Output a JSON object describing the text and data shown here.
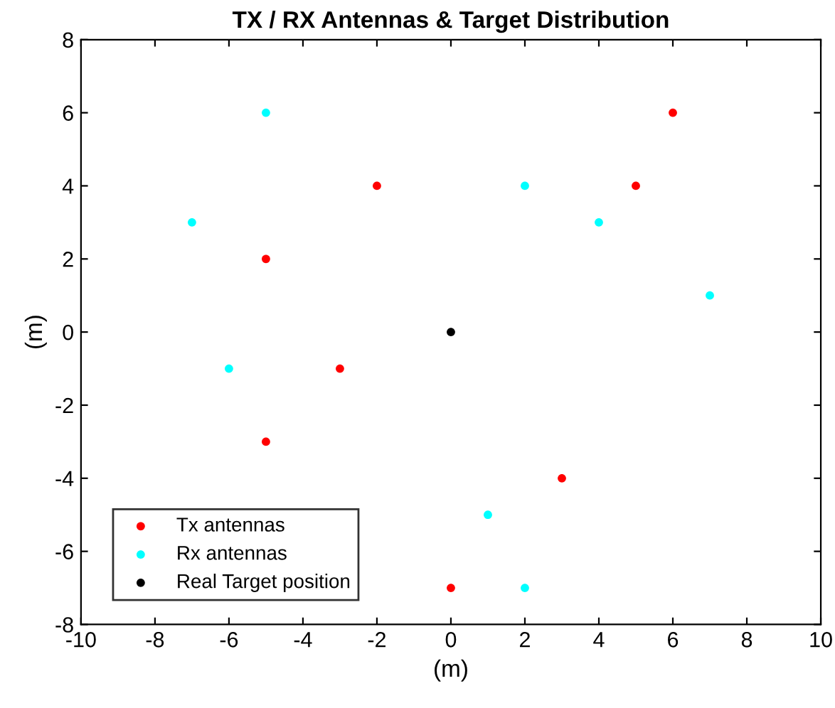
{
  "chart_data": {
    "type": "scatter",
    "title": "TX / RX Antennas & Target Distribution",
    "xlabel": "(m)",
    "ylabel": "(m)",
    "series": [
      {
        "name": "Tx antennas",
        "color": "#ff0000",
        "x": [
          6,
          -2,
          5,
          -5,
          -3,
          -5,
          3,
          0
        ],
        "values": [
          6,
          4,
          4,
          2,
          -1,
          -3,
          -4,
          -7
        ]
      },
      {
        "name": "Rx antennas",
        "color": "#00ffff",
        "x": [
          -5,
          2,
          -7,
          4,
          7,
          -6,
          1,
          2
        ],
        "values": [
          6,
          4,
          3,
          3,
          1,
          -1,
          -5,
          -7
        ]
      },
      {
        "name": "Real Target position",
        "color": "#000000",
        "x": [
          0
        ],
        "values": [
          0
        ]
      }
    ],
    "xlim": [
      -10,
      10
    ],
    "xticks": [
      -10,
      -8,
      -6,
      -4,
      -2,
      0,
      2,
      4,
      6,
      8,
      10
    ],
    "ylim": [
      -8,
      8
    ],
    "yticks": [
      -8,
      -6,
      -4,
      -2,
      0,
      2,
      4,
      6,
      8
    ],
    "grid": false,
    "legend": "bottom left",
    "marker": "circle"
  }
}
